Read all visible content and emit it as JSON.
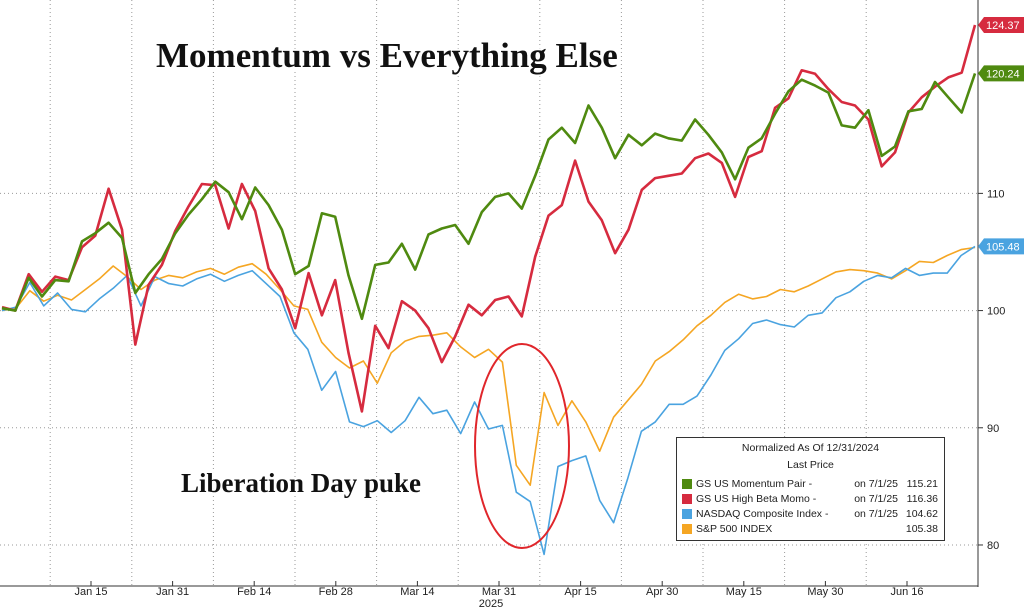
{
  "chart_data": {
    "type": "line",
    "title": "Momentum vs Everything Else",
    "annotation": "Liberation Day puke",
    "x_tick_labels": [
      "Jan 15",
      "Jan 31",
      "Feb 14",
      "Feb 28",
      "Mar 14",
      "Mar 31",
      "Apr 15",
      "Apr 30",
      "May 15",
      "May 30",
      "Jun 16"
    ],
    "year_label": "2025",
    "y_tick_labels": [
      "80",
      "90",
      "100",
      "110"
    ],
    "ylim": [
      76.5,
      126.5
    ],
    "legend": {
      "title": "Normalized As Of 12/31/2024",
      "subtitle": "Last Price"
    },
    "series": [
      {
        "name": "GS US Momentum Pair",
        "legend_label": "GS US Momentum Pair -",
        "legend_date": "on 7/1/25",
        "legend_value": "115.21",
        "last_label": "120.24",
        "color": "#4f8a10",
        "values": [
          100.2,
          100.0,
          102.8,
          101.2,
          102.6,
          102.5,
          105.9,
          106.6,
          107.5,
          106.2,
          101.5,
          103.1,
          104.4,
          106.6,
          108.2,
          109.5,
          111.0,
          110.1,
          107.8,
          110.5,
          109.0,
          106.9,
          103.1,
          103.8,
          108.3,
          108.0,
          103.0,
          99.3,
          103.9,
          104.1,
          105.7,
          103.5,
          106.5,
          107.0,
          107.3,
          105.7,
          108.4,
          109.7,
          110.0,
          108.7,
          111.5,
          114.6,
          115.6,
          114.3,
          117.5,
          115.6,
          113.0,
          115.0,
          114.1,
          115.1,
          114.7,
          114.5,
          116.3,
          115.0,
          113.5,
          111.2,
          113.9,
          114.7,
          116.8,
          118.7,
          119.7,
          119.2,
          118.6,
          115.8,
          115.6,
          117.1,
          113.2,
          114.0,
          117.0,
          117.2,
          119.5,
          118.2,
          116.9,
          120.24
        ]
      },
      {
        "name": "GS US High Beta Momo",
        "legend_label": "GS US High Beta Momo -",
        "legend_date": "on 7/1/25",
        "legend_value": "116.36",
        "last_label": "124.37",
        "color": "#d62b3f",
        "values": [
          100.3,
          100.0,
          103.1,
          101.6,
          102.9,
          102.6,
          105.4,
          106.4,
          110.4,
          106.9,
          97.1,
          102.2,
          103.9,
          106.8,
          108.9,
          110.8,
          110.7,
          107.0,
          110.8,
          108.5,
          103.6,
          101.8,
          98.5,
          103.2,
          99.6,
          102.6,
          96.4,
          91.4,
          98.7,
          96.8,
          100.8,
          100.0,
          98.5,
          95.6,
          97.8,
          100.5,
          99.6,
          100.9,
          101.2,
          99.5,
          104.6,
          108.1,
          109.0,
          112.8,
          109.3,
          107.7,
          104.9,
          106.9,
          110.3,
          111.3,
          111.5,
          111.7,
          113.0,
          113.4,
          112.6,
          109.7,
          113.1,
          113.6,
          117.3,
          118.1,
          120.5,
          120.2,
          118.9,
          117.8,
          117.5,
          116.3,
          112.3,
          113.5,
          116.9,
          118.2,
          119.1,
          119.9,
          120.3,
          124.37
        ]
      },
      {
        "name": "NASDAQ Composite Index",
        "legend_label": "NASDAQ Composite Index -",
        "legend_date": "on 7/1/25",
        "legend_value": "104.62",
        "last_label": "105.48",
        "color": "#4aa3e0",
        "values": [
          100.0,
          100.3,
          102.4,
          100.4,
          101.5,
          100.1,
          99.9,
          101.0,
          101.9,
          103.0,
          100.4,
          102.9,
          102.3,
          102.1,
          102.7,
          103.1,
          102.5,
          103.0,
          103.4,
          102.3,
          101.2,
          98.1,
          96.7,
          93.2,
          94.8,
          90.5,
          90.1,
          90.6,
          89.6,
          90.6,
          92.6,
          91.2,
          91.5,
          89.5,
          92.2,
          89.9,
          90.2,
          84.5,
          83.7,
          79.2,
          86.7,
          87.2,
          87.6,
          83.8,
          81.9,
          85.6,
          89.7,
          90.5,
          92.0,
          92.0,
          92.7,
          94.5,
          96.6,
          97.6,
          98.9,
          99.2,
          98.8,
          98.6,
          99.6,
          99.8,
          101.1,
          101.6,
          102.5,
          103.0,
          102.8,
          103.6,
          103.0,
          103.2,
          103.2,
          104.7,
          105.48
        ]
      },
      {
        "name": "S&P 500 INDEX",
        "legend_label": "S&P 500 INDEX",
        "legend_date": "",
        "legend_value": "105.38",
        "last_label": "",
        "color": "#f5a623",
        "values": [
          100.0,
          100.2,
          101.7,
          100.8,
          101.3,
          100.9,
          101.8,
          102.7,
          103.8,
          102.9,
          101.8,
          102.6,
          103.0,
          102.8,
          103.3,
          103.6,
          103.1,
          103.7,
          104.0,
          103.1,
          101.8,
          100.4,
          100.1,
          97.3,
          96.0,
          95.1,
          95.7,
          93.8,
          96.4,
          97.4,
          97.8,
          97.9,
          98.1,
          96.9,
          96.0,
          96.7,
          95.6,
          86.8,
          85.1,
          93.0,
          90.2,
          92.3,
          90.5,
          88.0,
          90.9,
          92.3,
          93.7,
          95.7,
          96.5,
          97.5,
          98.7,
          99.6,
          100.7,
          101.4,
          101.0,
          101.2,
          101.8,
          101.6,
          102.1,
          102.7,
          103.3,
          103.5,
          103.4,
          103.2,
          102.7,
          103.4,
          104.2,
          104.1,
          104.7,
          105.2,
          105.38
        ]
      }
    ]
  }
}
